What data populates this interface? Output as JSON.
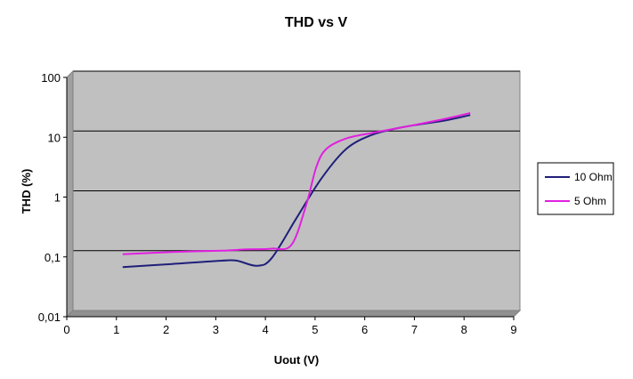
{
  "chart_data": {
    "type": "line",
    "title": "THD vs V",
    "xlabel": "Uout (V)",
    "ylabel": "THD (%)",
    "xlim": [
      0,
      9
    ],
    "ylim": [
      0.01,
      100
    ],
    "yscale": "log",
    "x_ticks": [
      0,
      1,
      2,
      3,
      4,
      5,
      6,
      7,
      8,
      9
    ],
    "x_tick_labels": [
      "0",
      "1",
      "2",
      "3",
      "4",
      "5",
      "6",
      "7",
      "8",
      "9"
    ],
    "y_ticks": [
      0.01,
      0.1,
      1,
      10,
      100
    ],
    "y_tick_labels": [
      "0,01",
      "0,1",
      "1",
      "10",
      "100"
    ],
    "grid": "horizontal",
    "plot_background": "#c0c0c0",
    "legend_position": "right",
    "series": [
      {
        "name": "10 Ohm",
        "color": "#1f1f7a",
        "points": [
          [
            1,
            0.053
          ],
          [
            2,
            0.06
          ],
          [
            3,
            0.068
          ],
          [
            3.3,
            0.068
          ],
          [
            3.7,
            0.056
          ],
          [
            4,
            0.075
          ],
          [
            4.5,
            0.35
          ],
          [
            5,
            1.6
          ],
          [
            5.5,
            5
          ],
          [
            6,
            8.5
          ],
          [
            6.5,
            11
          ],
          [
            7,
            13
          ],
          [
            7.5,
            15
          ],
          [
            8,
            18.5
          ]
        ]
      },
      {
        "name": "5 Ohm",
        "color": "#e020e0",
        "points": [
          [
            1,
            0.087
          ],
          [
            2,
            0.095
          ],
          [
            3,
            0.1
          ],
          [
            3.5,
            0.105
          ],
          [
            4,
            0.108
          ],
          [
            4.4,
            0.125
          ],
          [
            4.7,
            0.6
          ],
          [
            4.9,
            2.5
          ],
          [
            5.1,
            5
          ],
          [
            5.5,
            7.5
          ],
          [
            6,
            9.2
          ],
          [
            6.5,
            11
          ],
          [
            7,
            13.2
          ],
          [
            7.5,
            16
          ],
          [
            8,
            20
          ]
        ]
      }
    ]
  }
}
